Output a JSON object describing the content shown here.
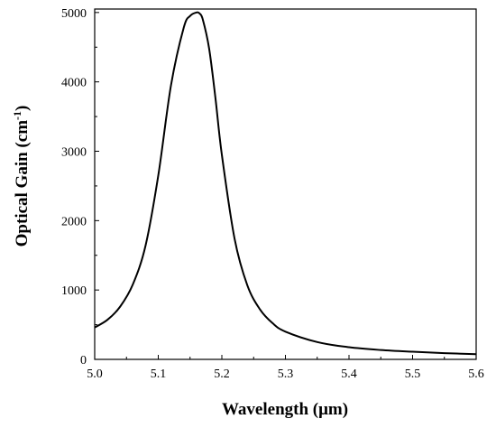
{
  "chart_data": {
    "type": "line",
    "title": "",
    "xlabel": "Wavelength (μm)",
    "ylabel_main": "Optical Gain (cm",
    "ylabel_sup": "-1",
    "ylabel_close": ")",
    "xlim": [
      5.0,
      5.6
    ],
    "ylim": [
      0,
      5050
    ],
    "xticks": [
      5.0,
      5.1,
      5.2,
      5.3,
      5.4,
      5.5,
      5.6
    ],
    "xtick_labels": [
      "5.0",
      "5.1",
      "5.2",
      "5.3",
      "5.4",
      "5.5",
      "5.6"
    ],
    "yticks": [
      0,
      1000,
      2000,
      3000,
      4000,
      5000
    ],
    "ytick_labels": [
      "0",
      "1000",
      "2000",
      "3000",
      "4000",
      "5000"
    ],
    "grid": false,
    "legend": "none",
    "line_color": "#000000",
    "series": [
      {
        "x": [
          5.0,
          5.02,
          5.04,
          5.06,
          5.08,
          5.1,
          5.12,
          5.14,
          5.15,
          5.16,
          5.165,
          5.17,
          5.18,
          5.19,
          5.2,
          5.22,
          5.24,
          5.26,
          5.28,
          5.3,
          5.35,
          5.4,
          5.45,
          5.5,
          5.55,
          5.6
        ],
        "y": [
          460,
          570,
          760,
          1080,
          1640,
          2650,
          3950,
          4780,
          4950,
          5000,
          4985,
          4900,
          4480,
          3760,
          2950,
          1740,
          1070,
          720,
          520,
          400,
          250,
          175,
          135,
          110,
          90,
          75
        ]
      }
    ]
  }
}
